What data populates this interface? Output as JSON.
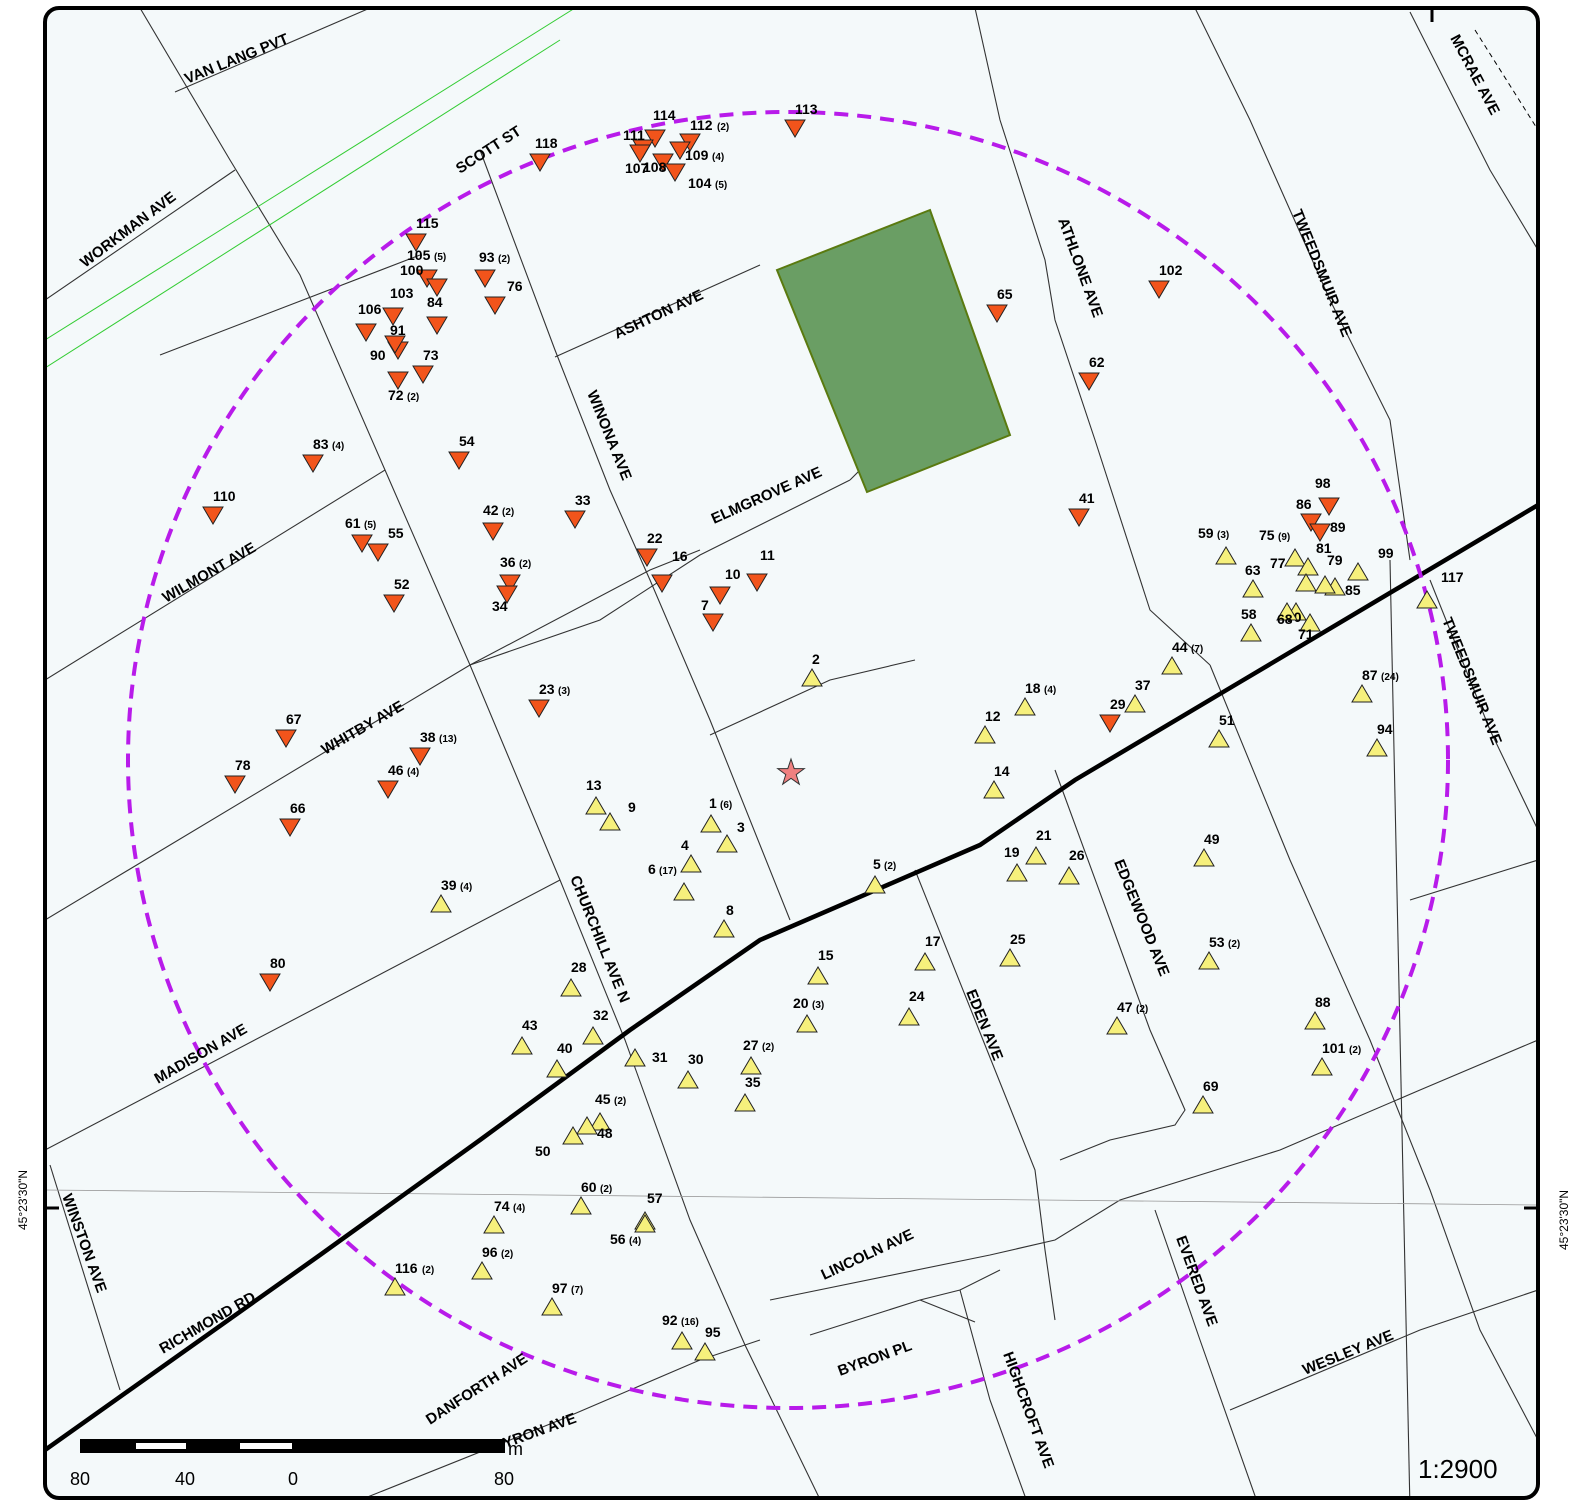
{
  "colors": {
    "background": "#f4f9fa",
    "down": "#f2541b",
    "up": "#f6f07c",
    "park": "#6a9e64",
    "circle": "#b81bea",
    "star": "#f08080",
    "rail": "#33cc33"
  },
  "scale": {
    "unit": "m",
    "labels": [
      "80",
      "40",
      "0",
      "80"
    ],
    "ratio": "1:2900"
  },
  "coordinate_label": "45°23'30\"N",
  "streets": [
    {
      "name": "VAN LANG PVT"
    },
    {
      "name": "SCOTT ST"
    },
    {
      "name": "WORKMAN AVE"
    },
    {
      "name": "ASHTON AVE"
    },
    {
      "name": "WINONA AVE"
    },
    {
      "name": "ELMGROVE AVE"
    },
    {
      "name": "ATHLONE AVE"
    },
    {
      "name": "TWEEDSMUIR AVE"
    },
    {
      "name": "MCRAE AVE"
    },
    {
      "name": "WILMONT AVE"
    },
    {
      "name": "WHITBY AVE"
    },
    {
      "name": "TWEEDSMUIR AVE"
    },
    {
      "name": "CHURCHILL AVE N"
    },
    {
      "name": "EDGEWOOD AVE"
    },
    {
      "name": "MADISON AVE"
    },
    {
      "name": "EDEN AVE"
    },
    {
      "name": "WINSTON AVE"
    },
    {
      "name": "LINCOLN AVE"
    },
    {
      "name": "EVERED AVE"
    },
    {
      "name": "RICHMOND RD"
    },
    {
      "name": "BYRON PL"
    },
    {
      "name": "DANFORTH AVE"
    },
    {
      "name": "HIGHCROFT AVE"
    },
    {
      "name": "WESLEY AVE"
    },
    {
      "name": "BYRON AVE"
    }
  ],
  "markers": [
    {
      "id": "113",
      "dir": "down"
    },
    {
      "id": "114",
      "dir": "down"
    },
    {
      "id": "112",
      "count": "(2)",
      "dir": "down"
    },
    {
      "id": "111",
      "dir": "down"
    },
    {
      "id": "109",
      "count": "(4)",
      "dir": "down"
    },
    {
      "id": "108",
      "dir": "down"
    },
    {
      "id": "104",
      "count": "(5)",
      "dir": "down"
    },
    {
      "id": "107",
      "dir": "down"
    },
    {
      "id": "118",
      "dir": "down"
    },
    {
      "id": "115",
      "dir": "down"
    },
    {
      "id": "105",
      "count": "(5)",
      "dir": "down"
    },
    {
      "id": "100",
      "dir": "down"
    },
    {
      "id": "93",
      "count": "(2)",
      "dir": "down"
    },
    {
      "id": "76",
      "dir": "down"
    },
    {
      "id": "103",
      "dir": "down"
    },
    {
      "id": "84",
      "dir": "down"
    },
    {
      "id": "106",
      "dir": "down"
    },
    {
      "id": "91",
      "dir": "down"
    },
    {
      "id": "90",
      "dir": "down"
    },
    {
      "id": "73",
      "dir": "down"
    },
    {
      "id": "72",
      "count": "(2)",
      "dir": "down"
    },
    {
      "id": "65",
      "dir": "down"
    },
    {
      "id": "102",
      "dir": "down"
    },
    {
      "id": "62",
      "dir": "down"
    },
    {
      "id": "83",
      "count": "(4)",
      "dir": "down"
    },
    {
      "id": "54",
      "dir": "down"
    },
    {
      "id": "110",
      "dir": "down"
    },
    {
      "id": "42",
      "count": "(2)",
      "dir": "down"
    },
    {
      "id": "33",
      "dir": "down"
    },
    {
      "id": "41",
      "dir": "down"
    },
    {
      "id": "61",
      "count": "(5)",
      "dir": "down"
    },
    {
      "id": "55",
      "dir": "down"
    },
    {
      "id": "22",
      "dir": "down"
    },
    {
      "id": "36",
      "count": "(2)",
      "dir": "down"
    },
    {
      "id": "34",
      "dir": "down"
    },
    {
      "id": "16",
      "dir": "down"
    },
    {
      "id": "10",
      "dir": "down"
    },
    {
      "id": "11",
      "dir": "down"
    },
    {
      "id": "7",
      "dir": "down"
    },
    {
      "id": "52",
      "dir": "down"
    },
    {
      "id": "98",
      "dir": "down"
    },
    {
      "id": "86",
      "dir": "down"
    },
    {
      "id": "89",
      "dir": "down"
    },
    {
      "id": "23",
      "count": "(3)",
      "dir": "down"
    },
    {
      "id": "29",
      "dir": "down"
    },
    {
      "id": "67",
      "dir": "down"
    },
    {
      "id": "38",
      "count": "(13)",
      "dir": "down"
    },
    {
      "id": "78",
      "dir": "down"
    },
    {
      "id": "46",
      "count": "(4)",
      "dir": "down"
    },
    {
      "id": "66",
      "dir": "down"
    },
    {
      "id": "80",
      "dir": "down"
    },
    {
      "id": "59",
      "count": "(3)",
      "dir": "up"
    },
    {
      "id": "75",
      "count": "(9)",
      "dir": "up"
    },
    {
      "id": "81",
      "dir": "up"
    },
    {
      "id": "99",
      "dir": "up"
    },
    {
      "id": "63",
      "dir": "up"
    },
    {
      "id": "77",
      "dir": "up"
    },
    {
      "id": "79",
      "dir": "up"
    },
    {
      "id": "85",
      "dir": "up"
    },
    {
      "id": "70",
      "dir": "up"
    },
    {
      "id": "71",
      "dir": "up"
    },
    {
      "id": "117",
      "dir": "up"
    },
    {
      "id": "58",
      "dir": "up"
    },
    {
      "id": "68",
      "dir": "up"
    },
    {
      "id": "2",
      "dir": "up"
    },
    {
      "id": "44",
      "count": "(7)",
      "dir": "up"
    },
    {
      "id": "18",
      "count": "(4)",
      "dir": "up"
    },
    {
      "id": "37",
      "dir": "up"
    },
    {
      "id": "87",
      "count": "(24)",
      "dir": "up"
    },
    {
      "id": "12",
      "dir": "up"
    },
    {
      "id": "51",
      "dir": "up"
    },
    {
      "id": "94",
      "dir": "up"
    },
    {
      "id": "14",
      "dir": "up"
    },
    {
      "id": "13",
      "dir": "up"
    },
    {
      "id": "9",
      "dir": "up"
    },
    {
      "id": "1",
      "count": "(6)",
      "dir": "up"
    },
    {
      "id": "3",
      "dir": "up"
    },
    {
      "id": "4",
      "dir": "up"
    },
    {
      "id": "6",
      "count": "(17)",
      "dir": "up"
    },
    {
      "id": "21",
      "dir": "up"
    },
    {
      "id": "19",
      "dir": "up"
    },
    {
      "id": "26",
      "dir": "up"
    },
    {
      "id": "49",
      "dir": "up"
    },
    {
      "id": "5",
      "count": "(2)",
      "dir": "up"
    },
    {
      "id": "39",
      "count": "(4)",
      "dir": "up"
    },
    {
      "id": "8",
      "dir": "up"
    },
    {
      "id": "17",
      "dir": "up"
    },
    {
      "id": "25",
      "dir": "up"
    },
    {
      "id": "53",
      "count": "(2)",
      "dir": "up"
    },
    {
      "id": "15",
      "dir": "up"
    },
    {
      "id": "28",
      "dir": "up"
    },
    {
      "id": "24",
      "dir": "up"
    },
    {
      "id": "20",
      "count": "(3)",
      "dir": "up"
    },
    {
      "id": "47",
      "count": "(2)",
      "dir": "up"
    },
    {
      "id": "88",
      "dir": "up"
    },
    {
      "id": "43",
      "dir": "up"
    },
    {
      "id": "32",
      "dir": "up"
    },
    {
      "id": "40",
      "dir": "up"
    },
    {
      "id": "31",
      "dir": "up"
    },
    {
      "id": "30",
      "dir": "up"
    },
    {
      "id": "27",
      "count": "(2)",
      "dir": "up"
    },
    {
      "id": "101",
      "count": "(2)",
      "dir": "up"
    },
    {
      "id": "35",
      "dir": "up"
    },
    {
      "id": "69",
      "dir": "up"
    },
    {
      "id": "45",
      "count": "(2)",
      "dir": "up"
    },
    {
      "id": "48",
      "dir": "up"
    },
    {
      "id": "50",
      "dir": "up"
    },
    {
      "id": "60",
      "count": "(2)",
      "dir": "up"
    },
    {
      "id": "57",
      "dir": "up"
    },
    {
      "id": "74",
      "count": "(4)",
      "dir": "up"
    },
    {
      "id": "56",
      "count": "(4)",
      "dir": "up"
    },
    {
      "id": "96",
      "count": "(2)",
      "dir": "up"
    },
    {
      "id": "116",
      "count": "(2)",
      "dir": "up"
    },
    {
      "id": "97",
      "count": "(7)",
      "dir": "up"
    },
    {
      "id": "92",
      "count": "(16)",
      "dir": "up"
    },
    {
      "id": "95",
      "dir": "up"
    }
  ]
}
